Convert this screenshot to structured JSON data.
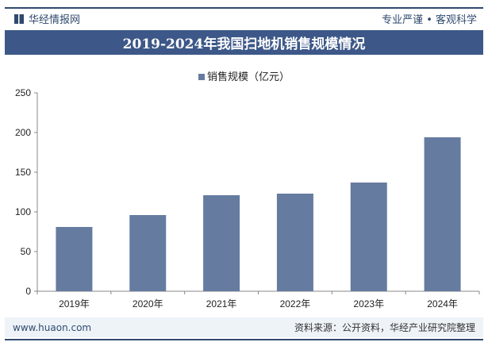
{
  "header": {
    "brand": "华经情报网",
    "slogan": "专业严谨 • 客观科学"
  },
  "footer": {
    "url": "www.huaon.com",
    "source": "资料来源：公开资料，华经产业研究院整理"
  },
  "chart_data": {
    "type": "bar",
    "title": "2019-2024年我国扫地机销售规模情况",
    "categories": [
      "2019年",
      "2020年",
      "2021年",
      "2022年",
      "2023年",
      "2024年"
    ],
    "series": [
      {
        "name": "销售规模（亿元）",
        "values": [
          81,
          96,
          121,
          123,
          137,
          194
        ]
      }
    ],
    "ylim": [
      0,
      250
    ],
    "yticks": [
      0,
      50,
      100,
      150,
      200,
      250
    ],
    "grid": false,
    "legend": "top",
    "colors": {
      "bar": "#667ba0",
      "title_bar": "#3d5888"
    }
  }
}
